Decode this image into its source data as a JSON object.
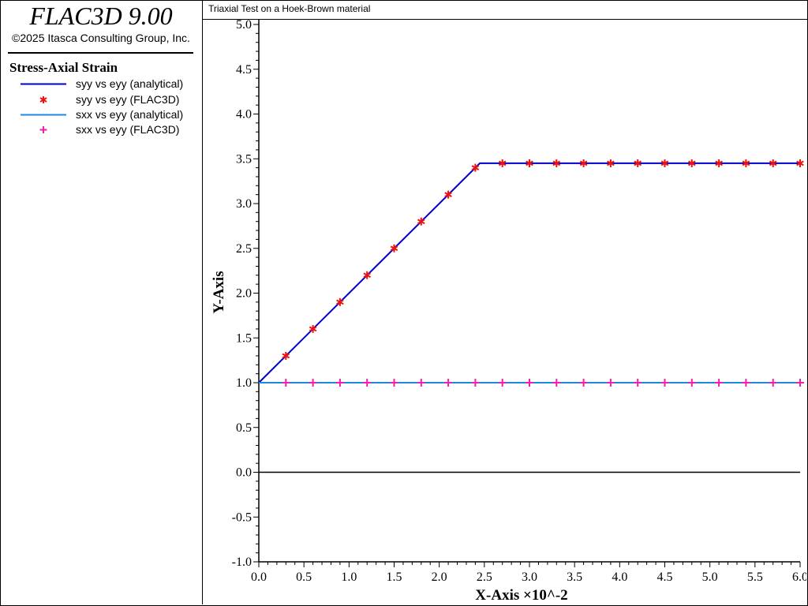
{
  "sidebar": {
    "app_title": "FLAC3D 9.00",
    "copyright": "©2025 Itasca Consulting Group, Inc.",
    "legend_title": "Stress-Axial Strain",
    "legend_items": [
      {
        "label": "syy vs eyy (analytical)",
        "symbol": "line",
        "color": "#0000cc"
      },
      {
        "label": "syy vs eyy (FLAC3D)",
        "symbol": "asterisk",
        "color": "#ee1111"
      },
      {
        "label": "sxx vs eyy (analytical)",
        "symbol": "line",
        "color": "#1e88e5"
      },
      {
        "label": "sxx vs eyy (FLAC3D)",
        "symbol": "plus",
        "color": "#ee22aa"
      }
    ]
  },
  "plot_title": "Triaxial Test on a Hoek-Brown material",
  "chart_data": {
    "type": "line",
    "title": "Triaxial Test on a Hoek-Brown material",
    "xlabel": "X-Axis ×10^-2",
    "ylabel": "Y-Axis",
    "xlim": [
      0.0,
      6.0
    ],
    "ylim": [
      -1.0,
      5.0
    ],
    "x_ticks": [
      "0.0",
      "0.5",
      "1.0",
      "1.5",
      "2.0",
      "2.5",
      "3.0",
      "3.5",
      "4.0",
      "4.5",
      "5.0",
      "5.5",
      "6.0"
    ],
    "y_ticks": [
      "-1.0",
      "-0.5",
      "0.0",
      "0.5",
      "1.0",
      "1.5",
      "2.0",
      "2.5",
      "3.0",
      "3.5",
      "4.0",
      "4.5",
      "5.0"
    ],
    "grid": false,
    "zero_line": true,
    "series": [
      {
        "name": "syy vs eyy (analytical)",
        "style": "line",
        "color": "#0000cc",
        "x": [
          0.0,
          2.45,
          6.0
        ],
        "y": [
          1.0,
          3.45,
          3.45
        ]
      },
      {
        "name": "syy vs eyy (FLAC3D)",
        "style": "asterisk",
        "color": "#ee1111",
        "x": [
          0.3,
          0.6,
          0.9,
          1.2,
          1.5,
          1.8,
          2.1,
          2.4,
          2.7,
          3.0,
          3.3,
          3.6,
          3.9,
          4.2,
          4.5,
          4.8,
          5.1,
          5.4,
          5.7,
          6.0
        ],
        "y": [
          1.3,
          1.6,
          1.9,
          2.2,
          2.5,
          2.8,
          3.1,
          3.4,
          3.45,
          3.45,
          3.45,
          3.45,
          3.45,
          3.45,
          3.45,
          3.45,
          3.45,
          3.45,
          3.45,
          3.45
        ]
      },
      {
        "name": "sxx vs eyy (analytical)",
        "style": "line",
        "color": "#1e88e5",
        "x": [
          0.0,
          6.0
        ],
        "y": [
          1.0,
          1.0
        ]
      },
      {
        "name": "sxx vs eyy (FLAC3D)",
        "style": "plus",
        "color": "#ee22aa",
        "x": [
          0.3,
          0.6,
          0.9,
          1.2,
          1.5,
          1.8,
          2.1,
          2.4,
          2.7,
          3.0,
          3.3,
          3.6,
          3.9,
          4.2,
          4.5,
          4.8,
          5.1,
          5.4,
          5.7,
          6.0
        ],
        "y": [
          1.0,
          1.0,
          1.0,
          1.0,
          1.0,
          1.0,
          1.0,
          1.0,
          1.0,
          1.0,
          1.0,
          1.0,
          1.0,
          1.0,
          1.0,
          1.0,
          1.0,
          1.0,
          1.0,
          1.0
        ]
      }
    ]
  }
}
